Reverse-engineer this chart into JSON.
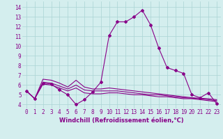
{
  "xlabel": "Windchill (Refroidissement éolien,°C)",
  "bg_color": "#d4eeee",
  "grid_color": "#aad4d4",
  "line_color": "#880088",
  "x_ticks": [
    0,
    1,
    2,
    3,
    4,
    5,
    6,
    7,
    8,
    9,
    10,
    11,
    12,
    13,
    14,
    15,
    16,
    17,
    18,
    19,
    20,
    21,
    22,
    23
  ],
  "y_ticks": [
    4,
    5,
    6,
    7,
    8,
    9,
    10,
    11,
    12,
    13,
    14
  ],
  "ylim": [
    3.6,
    14.6
  ],
  "xlim": [
    -0.5,
    23.5
  ],
  "main_line": [
    5.4,
    4.6,
    6.2,
    6.1,
    5.5,
    5.0,
    4.0,
    4.5,
    5.3,
    6.3,
    11.1,
    12.5,
    12.5,
    13.0,
    13.7,
    12.2,
    9.8,
    7.8,
    7.5,
    7.2,
    5.0,
    4.7,
    5.2,
    4.1
  ],
  "line2": [
    5.4,
    4.6,
    6.6,
    6.5,
    6.2,
    5.8,
    6.5,
    5.8,
    5.6,
    5.6,
    5.7,
    5.6,
    5.5,
    5.4,
    5.3,
    5.2,
    5.1,
    5.0,
    4.9,
    4.8,
    4.7,
    4.65,
    4.6,
    4.5
  ],
  "line3": [
    5.4,
    4.6,
    6.3,
    6.2,
    5.9,
    5.6,
    6.0,
    5.5,
    5.4,
    5.4,
    5.4,
    5.4,
    5.3,
    5.2,
    5.1,
    5.0,
    5.0,
    4.9,
    4.8,
    4.7,
    4.65,
    4.6,
    4.5,
    4.4
  ],
  "line4": [
    5.4,
    4.6,
    6.1,
    6.0,
    5.7,
    5.4,
    5.7,
    5.2,
    5.1,
    5.1,
    5.2,
    5.2,
    5.1,
    5.0,
    5.0,
    4.9,
    4.8,
    4.8,
    4.7,
    4.6,
    4.6,
    4.5,
    4.4,
    4.3
  ],
  "marker": "D",
  "markersize": 2,
  "linewidth": 0.8,
  "xlabel_fontsize": 6,
  "tick_fontsize": 5.5,
  "tick_color": "#880088",
  "label_color": "#880088"
}
